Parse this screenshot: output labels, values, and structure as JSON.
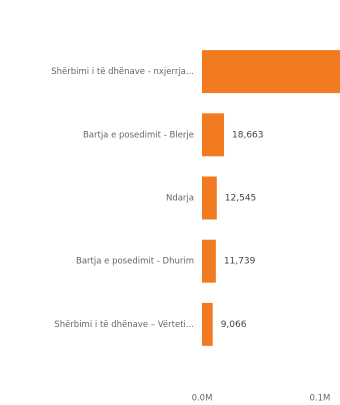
{
  "chart_data": {
    "type": "bar",
    "orientation": "horizontal",
    "categories": [
      "Shërbimi i të dhënave - nxjerrja...",
      "Bartja e posedimit - Blerje",
      "Ndarja",
      "Bartja e posedimit - Dhurim",
      "Shërbimi i të dhënave – Vërteti..."
    ],
    "values": [
      117000,
      18663,
      12545,
      11739,
      9066
    ],
    "value_labels": [
      null,
      "18,663",
      "12,545",
      "11,739",
      "9,066"
    ],
    "color": "#f27b21",
    "xlim": [
      0,
      117000
    ],
    "xticks": [
      {
        "value": 0,
        "label": "0.0M"
      },
      {
        "value": 100000,
        "label": "0.1M"
      }
    ]
  }
}
